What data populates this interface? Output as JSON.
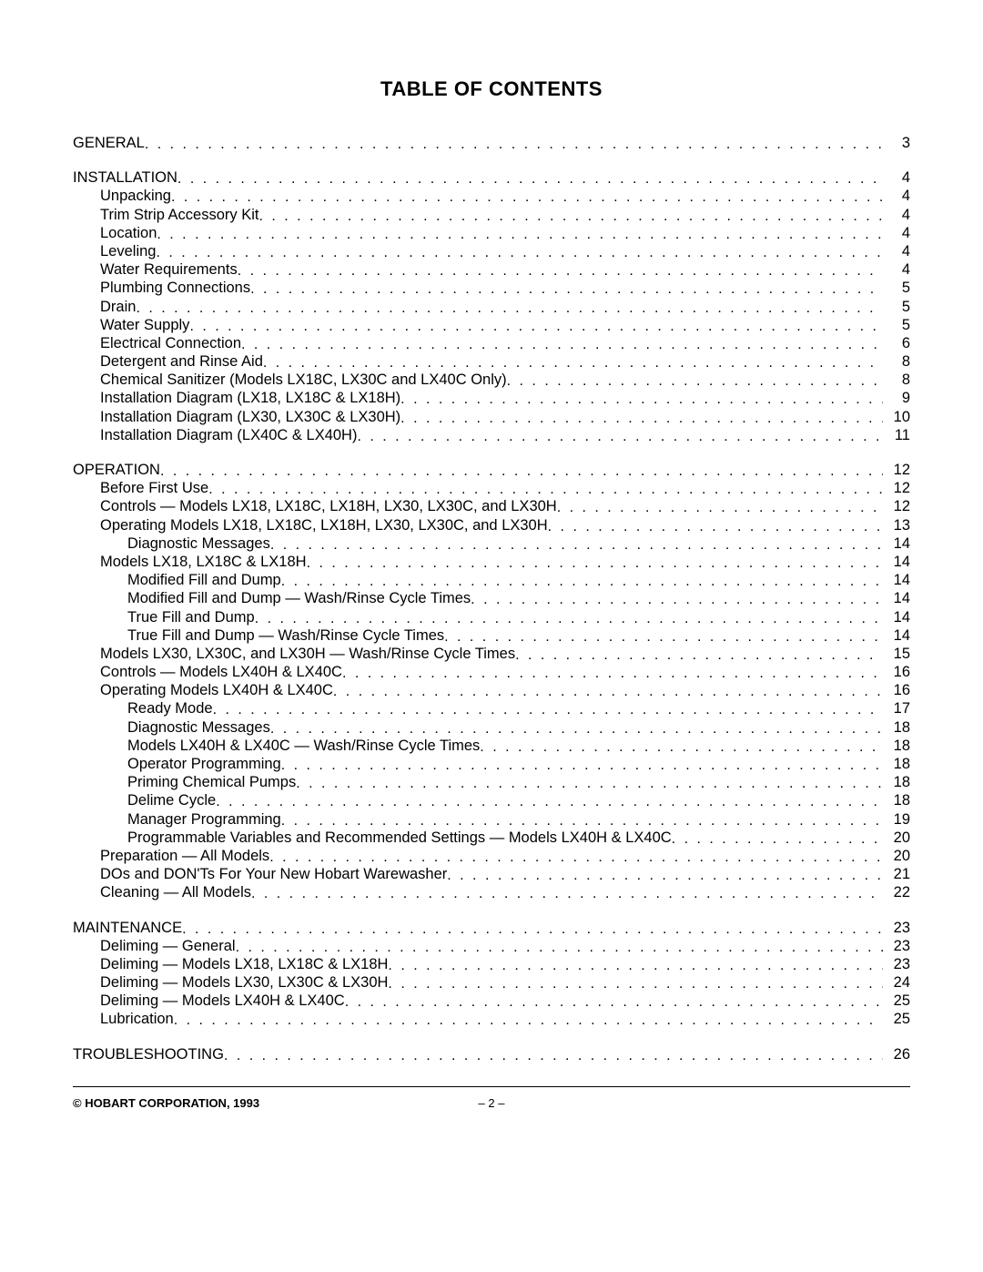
{
  "title": "TABLE OF CONTENTS",
  "footer": {
    "copyright": "© HOBART CORPORATION, 1993",
    "page_label": "– 2 –"
  },
  "entries": [
    {
      "level": 0,
      "label": "GENERAL",
      "page": "3",
      "gap_after": true
    },
    {
      "level": 0,
      "label": "INSTALLATION",
      "page": "4"
    },
    {
      "level": 1,
      "label": "Unpacking",
      "page": "4"
    },
    {
      "level": 1,
      "label": "Trim Strip Accessory Kit",
      "page": "4"
    },
    {
      "level": 1,
      "label": "Location",
      "page": "4"
    },
    {
      "level": 1,
      "label": "Leveling",
      "page": "4"
    },
    {
      "level": 1,
      "label": "Water Requirements",
      "page": "4"
    },
    {
      "level": 1,
      "label": "Plumbing Connections",
      "page": "5"
    },
    {
      "level": 1,
      "label": "Drain",
      "page": "5"
    },
    {
      "level": 1,
      "label": "Water Supply",
      "page": "5"
    },
    {
      "level": 1,
      "label": "Electrical Connection",
      "page": "6"
    },
    {
      "level": 1,
      "label": "Detergent and Rinse Aid",
      "page": "8"
    },
    {
      "level": 1,
      "label": "Chemical Sanitizer (Models LX18C, LX30C and LX40C Only)",
      "page": "8"
    },
    {
      "level": 1,
      "label": "Installation Diagram (LX18, LX18C & LX18H)",
      "page": "9"
    },
    {
      "level": 1,
      "label": "Installation Diagram (LX30, LX30C & LX30H)",
      "page": "10"
    },
    {
      "level": 1,
      "label": "Installation Diagram (LX40C & LX40H)",
      "page": "11",
      "gap_after": true
    },
    {
      "level": 0,
      "label": "OPERATION",
      "page": "12"
    },
    {
      "level": 1,
      "label": "Before First Use",
      "page": "12"
    },
    {
      "level": 1,
      "label": "Controls — Models LX18, LX18C, LX18H, LX30, LX30C, and LX30H",
      "page": "12"
    },
    {
      "level": 1,
      "label": "Operating Models LX18, LX18C, LX18H, LX30, LX30C, and LX30H",
      "page": "13"
    },
    {
      "level": 2,
      "label": "Diagnostic Messages",
      "page": "14"
    },
    {
      "level": 1,
      "label": "Models LX18, LX18C & LX18H",
      "page": "14"
    },
    {
      "level": 2,
      "label": "Modified Fill and Dump",
      "page": "14"
    },
    {
      "level": 2,
      "label": "Modified Fill and Dump — Wash/Rinse Cycle Times",
      "page": "14"
    },
    {
      "level": 2,
      "label": "True Fill and Dump",
      "page": "14"
    },
    {
      "level": 2,
      "label": "True Fill and Dump — Wash/Rinse Cycle Times",
      "page": "14"
    },
    {
      "level": 1,
      "label": "Models LX30, LX30C, and LX30H — Wash/Rinse Cycle Times",
      "page": "15"
    },
    {
      "level": 1,
      "label": "Controls — Models LX40H & LX40C",
      "page": "16"
    },
    {
      "level": 1,
      "label": "Operating Models LX40H & LX40C",
      "page": "16"
    },
    {
      "level": 2,
      "label": "Ready Mode",
      "page": "17"
    },
    {
      "level": 2,
      "label": "Diagnostic Messages",
      "page": "18"
    },
    {
      "level": 2,
      "label": "Models LX40H & LX40C — Wash/Rinse Cycle Times",
      "page": "18"
    },
    {
      "level": 2,
      "label": "Operator Programming",
      "page": "18"
    },
    {
      "level": 2,
      "label": "Priming Chemical Pumps",
      "page": "18"
    },
    {
      "level": 2,
      "label": "Delime Cycle",
      "page": "18"
    },
    {
      "level": 2,
      "label": "Manager Programming",
      "page": "19"
    },
    {
      "level": 2,
      "label": "Programmable Variables and Recommended Settings — Models LX40H & LX40C",
      "page": "20"
    },
    {
      "level": 1,
      "label": "Preparation — All Models",
      "page": "20"
    },
    {
      "level": 1,
      "label": "DOs and DON'Ts For Your New Hobart Warewasher",
      "page": "21"
    },
    {
      "level": 1,
      "label": "Cleaning — All Models",
      "page": "22",
      "gap_after": true
    },
    {
      "level": 0,
      "label": "MAINTENANCE",
      "page": "23"
    },
    {
      "level": 1,
      "label": "Deliming — General",
      "page": "23"
    },
    {
      "level": 1,
      "label": "Deliming — Models LX18, LX18C & LX18H",
      "page": "23"
    },
    {
      "level": 1,
      "label": "Deliming — Models LX30, LX30C & LX30H",
      "page": "24"
    },
    {
      "level": 1,
      "label": "Deliming — Models LX40H & LX40C",
      "page": "25"
    },
    {
      "level": 1,
      "label": "Lubrication",
      "page": "25",
      "gap_after": true
    },
    {
      "level": 0,
      "label": "TROUBLESHOOTING",
      "page": "26"
    }
  ]
}
